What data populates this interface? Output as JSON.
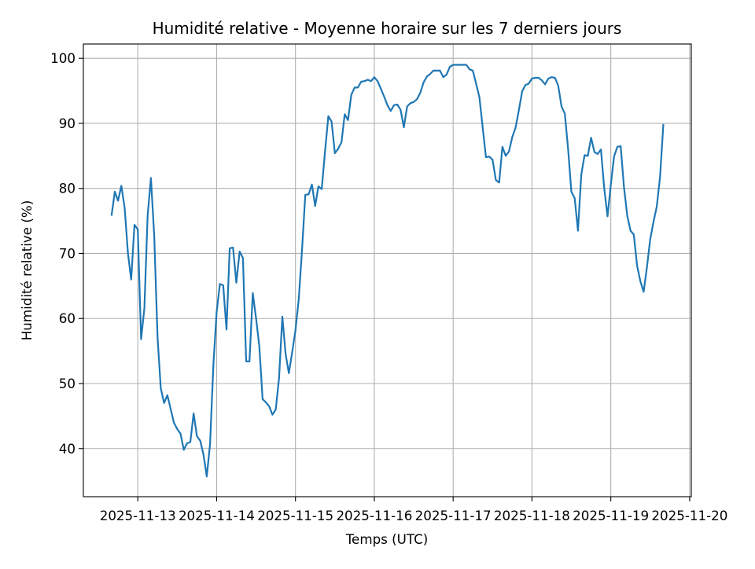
{
  "chart_data": {
    "type": "line",
    "title": "Humidité relative - Moyenne horaire sur les 7 derniers jours",
    "xlabel": "Temps (UTC)",
    "ylabel": "Humidité relative (%)",
    "ylim": [
      32.6,
      102.2
    ],
    "xlim": [
      "2025-11-12T07:26",
      "2025-11-20T00:30"
    ],
    "grid": true,
    "line_color": "#1f77b4",
    "yticks": [
      40,
      50,
      60,
      70,
      80,
      90,
      100
    ],
    "xticks": [
      "2025-11-13",
      "2025-11-14",
      "2025-11-15",
      "2025-11-16",
      "2025-11-17",
      "2025-11-18",
      "2025-11-19",
      "2025-11-20"
    ],
    "series": [
      {
        "x": [
          "2025-11-12T16:00",
          "2025-11-12T17:00",
          "2025-11-12T18:00",
          "2025-11-12T19:00",
          "2025-11-12T20:00",
          "2025-11-12T21:00",
          "2025-11-12T22:00",
          "2025-11-12T23:00",
          "2025-11-13T00:00",
          "2025-11-13T01:00",
          "2025-11-13T02:00",
          "2025-11-13T03:00",
          "2025-11-13T04:00",
          "2025-11-13T05:00",
          "2025-11-13T06:00",
          "2025-11-13T07:00",
          "2025-11-13T08:00",
          "2025-11-13T09:00",
          "2025-11-13T10:00",
          "2025-11-13T11:00",
          "2025-11-13T12:00",
          "2025-11-13T13:00",
          "2025-11-13T14:00",
          "2025-11-13T15:00",
          "2025-11-13T16:00",
          "2025-11-13T17:00",
          "2025-11-13T18:00",
          "2025-11-13T19:00",
          "2025-11-13T20:00",
          "2025-11-13T21:00",
          "2025-11-13T22:00",
          "2025-11-13T23:00",
          "2025-11-14T00:00",
          "2025-11-14T01:00",
          "2025-11-14T02:00",
          "2025-11-14T03:00",
          "2025-11-14T04:00",
          "2025-11-14T05:00",
          "2025-11-14T06:00",
          "2025-11-14T07:00",
          "2025-11-14T08:00",
          "2025-11-14T09:00",
          "2025-11-14T10:00",
          "2025-11-14T11:00",
          "2025-11-14T12:00",
          "2025-11-14T13:00",
          "2025-11-14T14:00",
          "2025-11-14T15:00",
          "2025-11-14T16:00",
          "2025-11-14T17:00",
          "2025-11-14T18:00",
          "2025-11-14T19:00",
          "2025-11-14T20:00",
          "2025-11-14T21:00",
          "2025-11-14T22:00",
          "2025-11-14T23:00",
          "2025-11-15T00:00",
          "2025-11-15T01:00",
          "2025-11-15T02:00",
          "2025-11-15T03:00",
          "2025-11-15T04:00",
          "2025-11-15T05:00",
          "2025-11-15T06:00",
          "2025-11-15T07:00",
          "2025-11-15T08:00",
          "2025-11-15T09:00",
          "2025-11-15T10:00",
          "2025-11-15T11:00",
          "2025-11-15T12:00",
          "2025-11-15T13:00",
          "2025-11-15T14:00",
          "2025-11-15T15:00",
          "2025-11-15T16:00",
          "2025-11-15T17:00",
          "2025-11-15T18:00",
          "2025-11-15T19:00",
          "2025-11-15T20:00",
          "2025-11-15T21:00",
          "2025-11-15T22:00",
          "2025-11-15T23:00",
          "2025-11-16T00:00",
          "2025-11-16T01:00",
          "2025-11-16T02:00",
          "2025-11-16T03:00",
          "2025-11-16T04:00",
          "2025-11-16T05:00",
          "2025-11-16T06:00",
          "2025-11-16T07:00",
          "2025-11-16T08:00",
          "2025-11-16T09:00",
          "2025-11-16T10:00",
          "2025-11-16T11:00",
          "2025-11-16T12:00",
          "2025-11-16T13:00",
          "2025-11-16T14:00",
          "2025-11-16T15:00",
          "2025-11-16T16:00",
          "2025-11-16T17:00",
          "2025-11-16T18:00",
          "2025-11-16T19:00",
          "2025-11-16T20:00",
          "2025-11-16T21:00",
          "2025-11-16T22:00",
          "2025-11-16T23:00",
          "2025-11-17T00:00",
          "2025-11-17T01:00",
          "2025-11-17T02:00",
          "2025-11-17T03:00",
          "2025-11-17T04:00",
          "2025-11-17T05:00",
          "2025-11-17T06:00",
          "2025-11-17T07:00",
          "2025-11-17T08:00",
          "2025-11-17T09:00",
          "2025-11-17T10:00",
          "2025-11-17T11:00",
          "2025-11-17T12:00",
          "2025-11-17T13:00",
          "2025-11-17T14:00",
          "2025-11-17T15:00",
          "2025-11-17T16:00",
          "2025-11-17T17:00",
          "2025-11-17T18:00",
          "2025-11-17T19:00",
          "2025-11-17T20:00",
          "2025-11-17T21:00",
          "2025-11-17T22:00",
          "2025-11-17T23:00",
          "2025-11-18T00:00",
          "2025-11-18T01:00",
          "2025-11-18T02:00",
          "2025-11-18T03:00",
          "2025-11-18T04:00",
          "2025-11-18T05:00",
          "2025-11-18T06:00",
          "2025-11-18T07:00",
          "2025-11-18T08:00",
          "2025-11-18T09:00",
          "2025-11-18T10:00",
          "2025-11-18T11:00",
          "2025-11-18T12:00",
          "2025-11-18T13:00",
          "2025-11-18T14:00",
          "2025-11-18T15:00",
          "2025-11-18T16:00",
          "2025-11-18T17:00",
          "2025-11-18T18:00",
          "2025-11-18T19:00",
          "2025-11-18T20:00",
          "2025-11-18T21:00",
          "2025-11-18T22:00",
          "2025-11-18T23:00",
          "2025-11-19T00:00",
          "2025-11-19T01:00",
          "2025-11-19T02:00",
          "2025-11-19T03:00",
          "2025-11-19T04:00",
          "2025-11-19T05:00",
          "2025-11-19T06:00",
          "2025-11-19T07:00",
          "2025-11-19T08:00",
          "2025-11-19T09:00",
          "2025-11-19T10:00",
          "2025-11-19T11:00",
          "2025-11-19T12:00",
          "2025-11-19T13:00",
          "2025-11-19T14:00",
          "2025-11-19T15:00",
          "2025-11-19T16:00"
        ],
        "values": [
          75.8,
          79.5,
          78.1,
          80.4,
          77.0,
          70.0,
          66.0,
          74.4,
          73.7,
          56.8,
          61.6,
          75.8,
          81.6,
          72.7,
          57.2,
          49.3,
          47.0,
          48.2,
          46.1,
          44.0,
          43.0,
          42.3,
          39.8,
          40.8,
          41.0,
          45.4,
          41.9,
          41.2,
          39.1,
          35.7,
          40.7,
          52.8,
          60.9,
          65.3,
          65.1,
          58.3,
          70.8,
          70.9,
          65.5,
          70.3,
          69.3,
          53.4,
          53.4,
          63.9,
          60.0,
          55.8,
          47.6,
          47.1,
          46.5,
          45.2,
          46.0,
          50.8,
          60.3,
          54.5,
          51.6,
          54.8,
          58.2,
          63.0,
          70.5,
          79.0,
          79.1,
          80.6,
          77.3,
          80.3,
          79.9,
          85.7,
          91.1,
          90.3,
          85.4,
          86.1,
          87.1,
          91.4,
          90.5,
          94.4,
          95.5,
          95.5,
          96.4,
          96.5,
          96.7,
          96.5,
          97.1,
          96.5,
          95.3,
          94.1,
          92.8,
          91.9,
          92.8,
          92.9,
          92.1,
          89.4,
          92.6,
          93.1,
          93.3,
          93.7,
          94.7,
          96.3,
          97.2,
          97.6,
          98.1,
          98.1,
          98.1,
          97.1,
          97.5,
          98.7,
          99.0,
          99.0,
          99.0,
          99.0,
          99.0,
          98.3,
          98.1,
          96.1,
          94.0,
          89.3,
          84.8,
          84.9,
          84.4,
          81.3,
          80.9,
          86.4,
          85.0,
          85.7,
          87.9,
          89.3,
          92.0,
          94.9,
          95.9,
          96.1,
          96.9,
          97.0,
          97.0,
          96.6,
          96.0,
          96.9,
          97.1,
          97.0,
          95.8,
          92.6,
          91.5,
          86.0,
          79.5,
          78.5,
          73.5,
          82.1,
          85.1,
          85.0,
          87.8,
          85.6,
          85.3,
          86.0,
          80.0,
          75.7,
          80.6,
          84.9,
          86.4,
          86.5,
          80.2,
          75.8,
          73.5,
          72.9,
          68.1,
          65.7,
          64.1,
          67.9,
          72.2,
          74.9,
          77.2,
          81.8,
          89.9
        ]
      }
    ]
  }
}
